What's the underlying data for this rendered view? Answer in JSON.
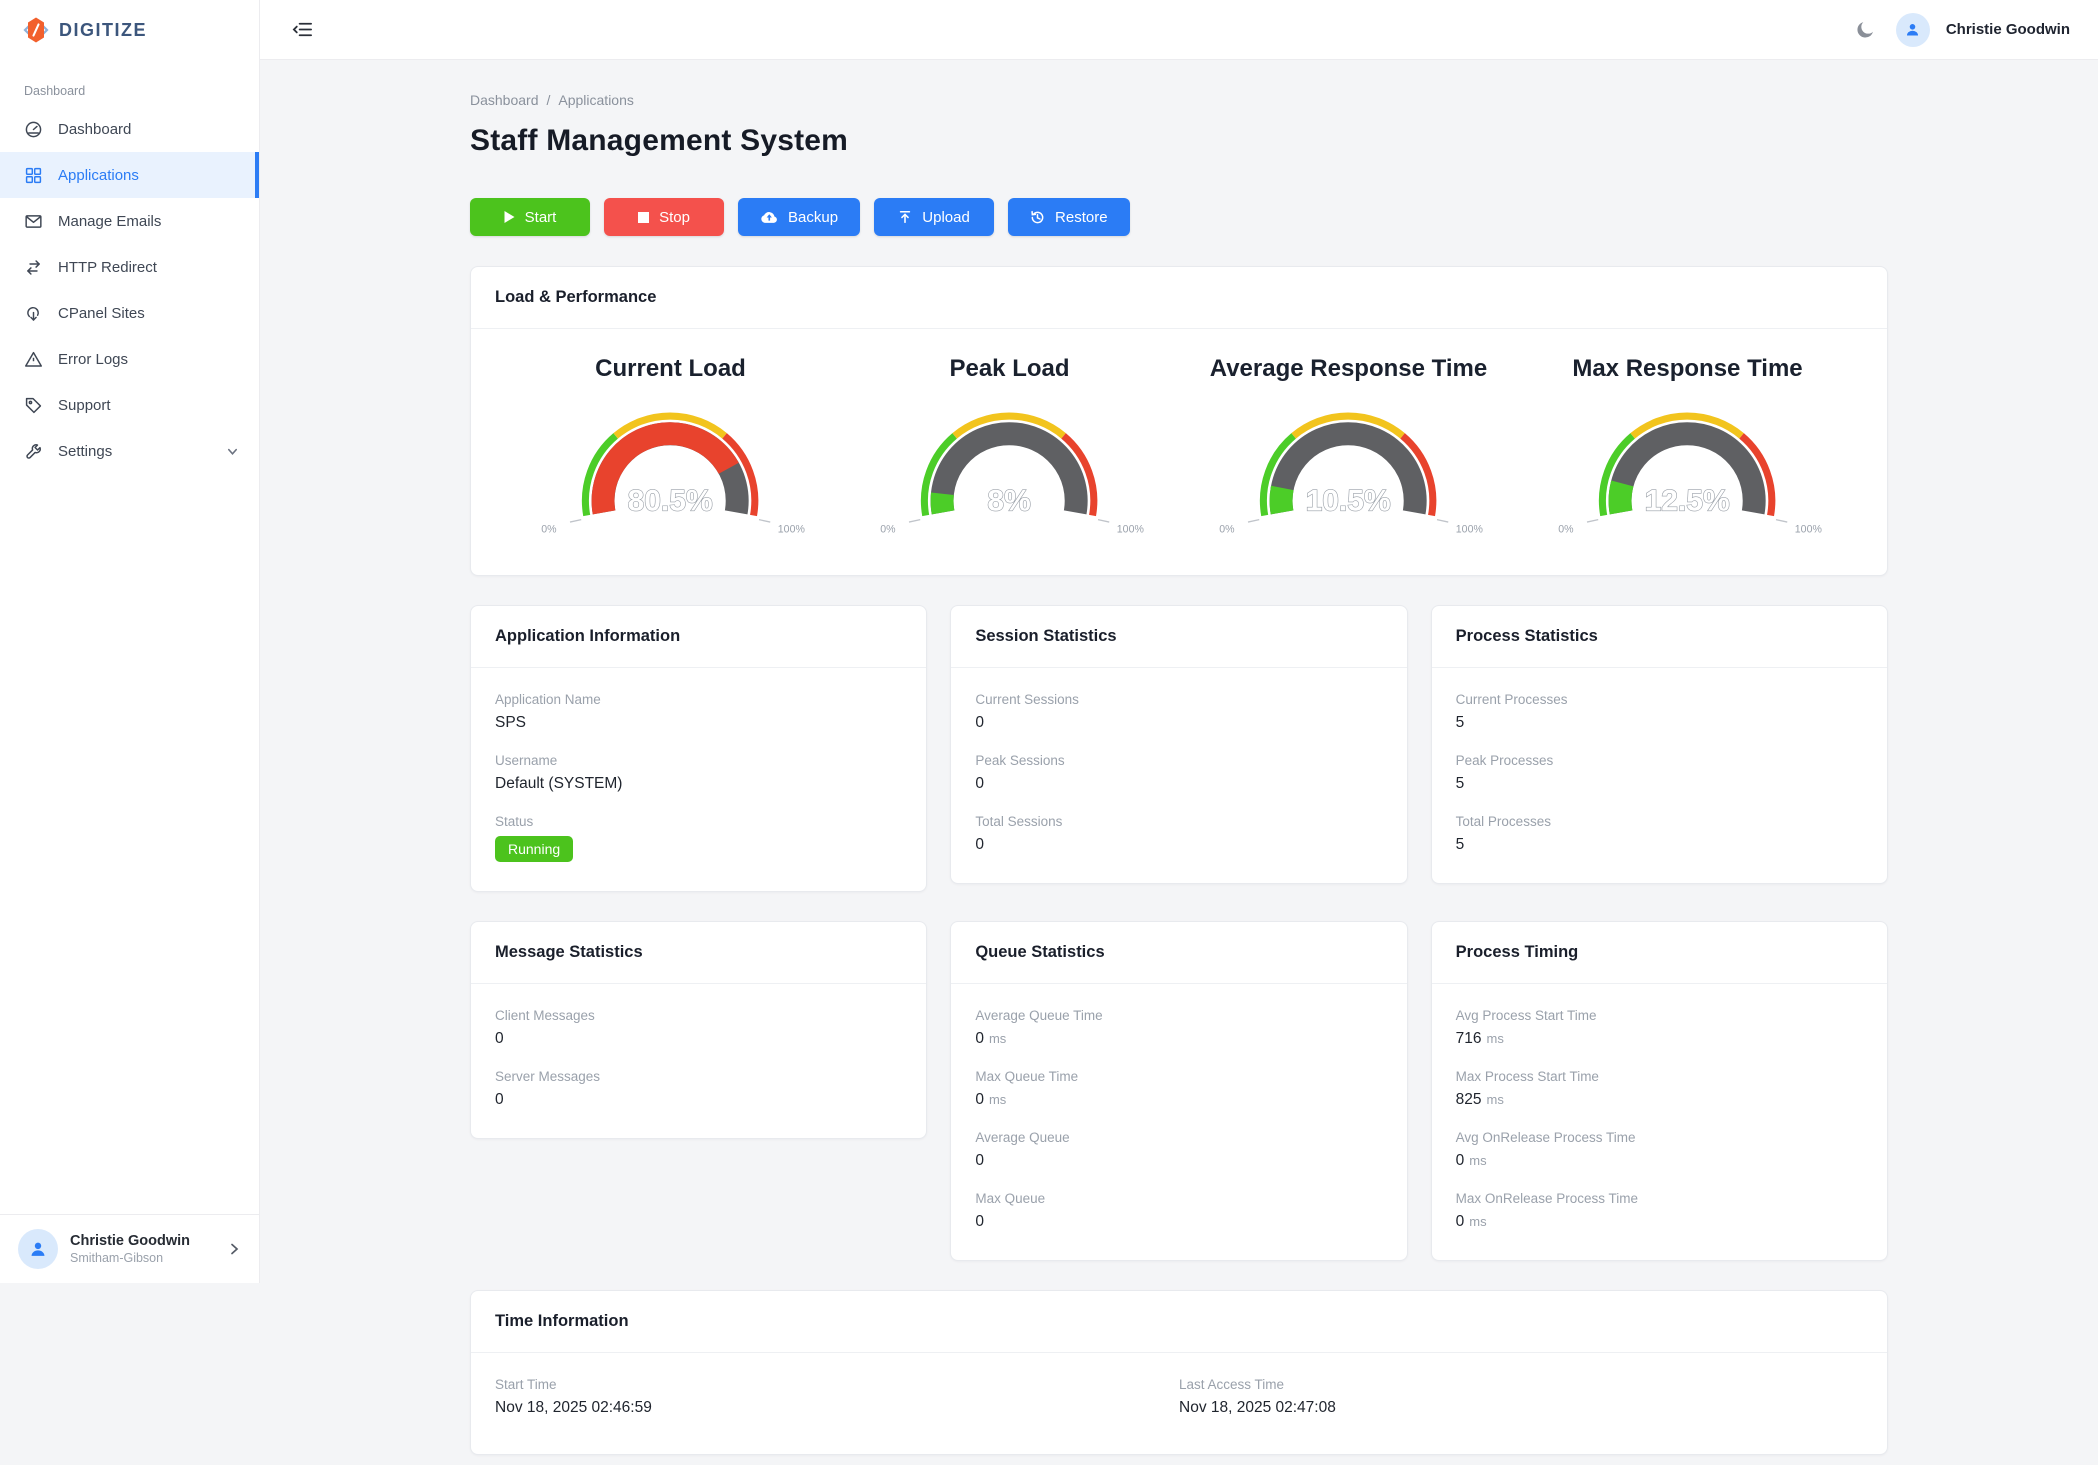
{
  "brand": {
    "name": "DIGITIZE"
  },
  "sidebar": {
    "section_label": "Dashboard",
    "items": [
      {
        "label": "Dashboard"
      },
      {
        "label": "Applications",
        "active": true
      },
      {
        "label": "Manage Emails"
      },
      {
        "label": "HTTP Redirect"
      },
      {
        "label": "CPanel Sites"
      },
      {
        "label": "Error Logs"
      },
      {
        "label": "Support"
      },
      {
        "label": "Settings"
      }
    ],
    "user": {
      "name": "Christie Goodwin",
      "org": "Smitham-Gibson"
    }
  },
  "topbar": {
    "user_name": "Christie Goodwin"
  },
  "breadcrumb": {
    "items": [
      "Dashboard",
      "Applications"
    ],
    "separator": "/"
  },
  "page": {
    "title": "Staff Management System"
  },
  "actions": [
    {
      "label": "Start",
      "color": "#4cc31d"
    },
    {
      "label": "Stop",
      "color": "#f4514c"
    },
    {
      "label": "Backup",
      "color": "#2b7cf5"
    },
    {
      "label": "Upload",
      "color": "#2b7cf5"
    },
    {
      "label": "Restore",
      "color": "#2b7cf5"
    }
  ],
  "load_performance": {
    "title": "Load & Performance",
    "axis": {
      "min": "0%",
      "max": "100%"
    },
    "thresholds": [
      30,
      70
    ],
    "zone_colors": {
      "green": "#4ccd28",
      "yellow": "#f2c41d",
      "red": "#e8432d",
      "track": "#5f6063"
    },
    "gauges": [
      {
        "title": "Current Load",
        "value": 80.5,
        "display": "80.5%"
      },
      {
        "title": "Peak Load",
        "value": 8,
        "display": "8%"
      },
      {
        "title": "Average Response Time",
        "value": 10.5,
        "display": "10.5%"
      },
      {
        "title": "Max Response Time",
        "value": 12.5,
        "display": "12.5%"
      }
    ]
  },
  "cards": [
    {
      "title": "Application Information",
      "items": [
        {
          "label": "Application Name",
          "value": "SPS"
        },
        {
          "label": "Username",
          "value": "Default (SYSTEM)"
        },
        {
          "label": "Status",
          "badge": "Running"
        }
      ]
    },
    {
      "title": "Session Statistics",
      "items": [
        {
          "label": "Current Sessions",
          "value": "0"
        },
        {
          "label": "Peak Sessions",
          "value": "0"
        },
        {
          "label": "Total Sessions",
          "value": "0"
        }
      ]
    },
    {
      "title": "Process Statistics",
      "items": [
        {
          "label": "Current Processes",
          "value": "5"
        },
        {
          "label": "Peak Processes",
          "value": "5"
        },
        {
          "label": "Total Processes",
          "value": "5"
        }
      ]
    },
    {
      "title": "Message Statistics",
      "items": [
        {
          "label": "Client Messages",
          "value": "0"
        },
        {
          "label": "Server Messages",
          "value": "0"
        }
      ]
    },
    {
      "title": "Queue Statistics",
      "items": [
        {
          "label": "Average Queue Time",
          "value": "0",
          "unit": "ms"
        },
        {
          "label": "Max Queue Time",
          "value": "0",
          "unit": "ms"
        },
        {
          "label": "Average Queue",
          "value": "0"
        },
        {
          "label": "Max Queue",
          "value": "0"
        }
      ]
    },
    {
      "title": "Process Timing",
      "items": [
        {
          "label": "Avg Process Start Time",
          "value": "716",
          "unit": "ms"
        },
        {
          "label": "Max Process Start Time",
          "value": "825",
          "unit": "ms"
        },
        {
          "label": "Avg OnRelease Process Time",
          "value": "0",
          "unit": "ms"
        },
        {
          "label": "Max OnRelease Process Time",
          "value": "0",
          "unit": "ms"
        }
      ]
    },
    {
      "title": "Time Information",
      "items": [
        {
          "label": "Start Time",
          "value": "Nov 18, 2025 02:46:59"
        },
        {
          "label": "Last Access Time",
          "value": "Nov 18, 2025 02:47:08"
        }
      ]
    }
  ],
  "colors": {
    "accent_blue": "#2b7cf5",
    "success_green": "#4cc31d",
    "danger_red": "#f4514c"
  }
}
